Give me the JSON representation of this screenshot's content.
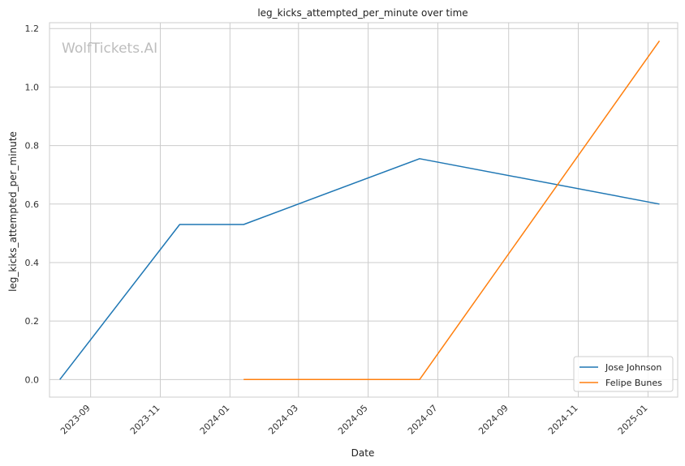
{
  "chart_data": {
    "type": "line",
    "title": "leg_kicks_attempted_per_minute over time",
    "xlabel": "Date",
    "ylabel": "leg_kicks_attempted_per_minute",
    "x_ticks": [
      "2023-09",
      "2023-11",
      "2024-01",
      "2024-03",
      "2024-05",
      "2024-07",
      "2024-09",
      "2024-11",
      "2025-01"
    ],
    "y_ticks": [
      "0.0",
      "0.2",
      "0.4",
      "0.6",
      "0.8",
      "1.0",
      "1.2"
    ],
    "ylim": [
      -0.06,
      1.22
    ],
    "xlim": [
      "2023-07-27",
      "2025-01-27"
    ],
    "grid": true,
    "legend_position": "bottom-right",
    "watermark": "WolfTickets.AI",
    "series": [
      {
        "name": "Jose Johnson",
        "color": "#1f77b4",
        "points": [
          {
            "x": "2023-08-05",
            "y": 0.0
          },
          {
            "x": "2023-11-18",
            "y": 0.53
          },
          {
            "x": "2024-01-13",
            "y": 0.53
          },
          {
            "x": "2024-06-15",
            "y": 0.755
          },
          {
            "x": "2025-01-11",
            "y": 0.6
          }
        ]
      },
      {
        "name": "Felipe Bunes",
        "color": "#ff7f0e",
        "points": [
          {
            "x": "2024-01-13",
            "y": 0.0
          },
          {
            "x": "2024-06-15",
            "y": 0.0
          },
          {
            "x": "2025-01-11",
            "y": 1.158
          }
        ]
      }
    ]
  }
}
